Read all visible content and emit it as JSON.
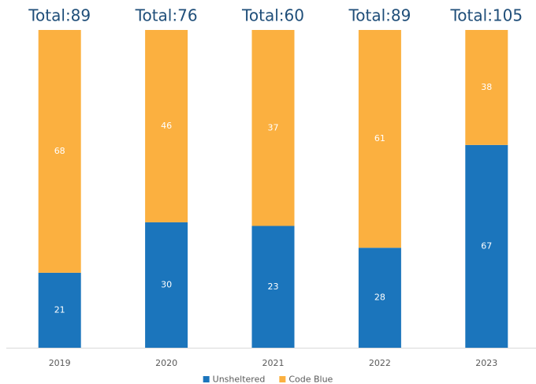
{
  "chart_data": {
    "type": "bar",
    "stacked": "percent",
    "categories": [
      "2019",
      "2020",
      "2021",
      "2022",
      "2023"
    ],
    "series": [
      {
        "name": "Unsheltered",
        "color": "#1b75bc",
        "values": [
          21,
          30,
          23,
          28,
          67
        ]
      },
      {
        "name": "Code Blue",
        "color": "#fbb040",
        "values": [
          68,
          46,
          37,
          61,
          38
        ]
      }
    ],
    "annotations": [
      "Total:89",
      "Total:76",
      "Total:60",
      "Total:89",
      "Total:105"
    ],
    "legend": "bottom"
  }
}
